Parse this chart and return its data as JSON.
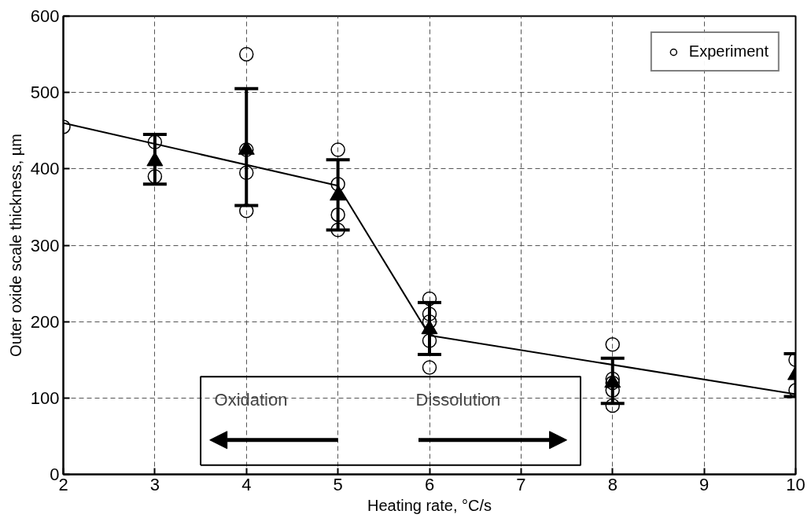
{
  "chart_data": {
    "type": "scatter",
    "xlabel": "Heating rate, °C/s",
    "ylabel": "Outer oxide scale thickness, µm",
    "xlim": [
      2,
      10
    ],
    "ylim": [
      0,
      600
    ],
    "xticks": [
      2,
      3,
      4,
      5,
      6,
      7,
      8,
      9,
      10
    ],
    "yticks": [
      0,
      100,
      200,
      300,
      400,
      500,
      600
    ],
    "grid": true,
    "legend": "top right",
    "series": [
      {
        "name": "Experiment",
        "marker": "circle",
        "color": "#000000",
        "x": [
          2,
          3,
          3,
          4,
          4,
          4,
          4,
          5,
          5,
          5,
          5,
          6,
          6,
          6,
          6,
          6,
          8,
          8,
          8,
          8,
          8,
          10,
          10
        ],
        "values": [
          455,
          435,
          390,
          550,
          425,
          395,
          345,
          425,
          380,
          340,
          320,
          230,
          210,
          200,
          175,
          140,
          170,
          125,
          120,
          110,
          90,
          150,
          110
        ]
      },
      {
        "type": "scatter",
        "marker": "triangle",
        "color": "#000000",
        "x": [
          3,
          4,
          5,
          6,
          8,
          10
        ],
        "values": [
          410,
          425,
          365,
          190,
          120,
          130
        ],
        "errors": [
          [
            380,
            445
          ],
          [
            352,
            505
          ],
          [
            320,
            412
          ],
          [
            157,
            225
          ],
          [
            93,
            152
          ],
          [
            102,
            158
          ]
        ]
      },
      {
        "type": "line",
        "marker": "none",
        "line_style": "solid",
        "color": "#000000",
        "x": [
          2,
          5,
          6,
          10
        ],
        "values": [
          460,
          378,
          182,
          105
        ]
      }
    ],
    "annotations": [
      "Oxidation",
      "Dissolution"
    ]
  }
}
